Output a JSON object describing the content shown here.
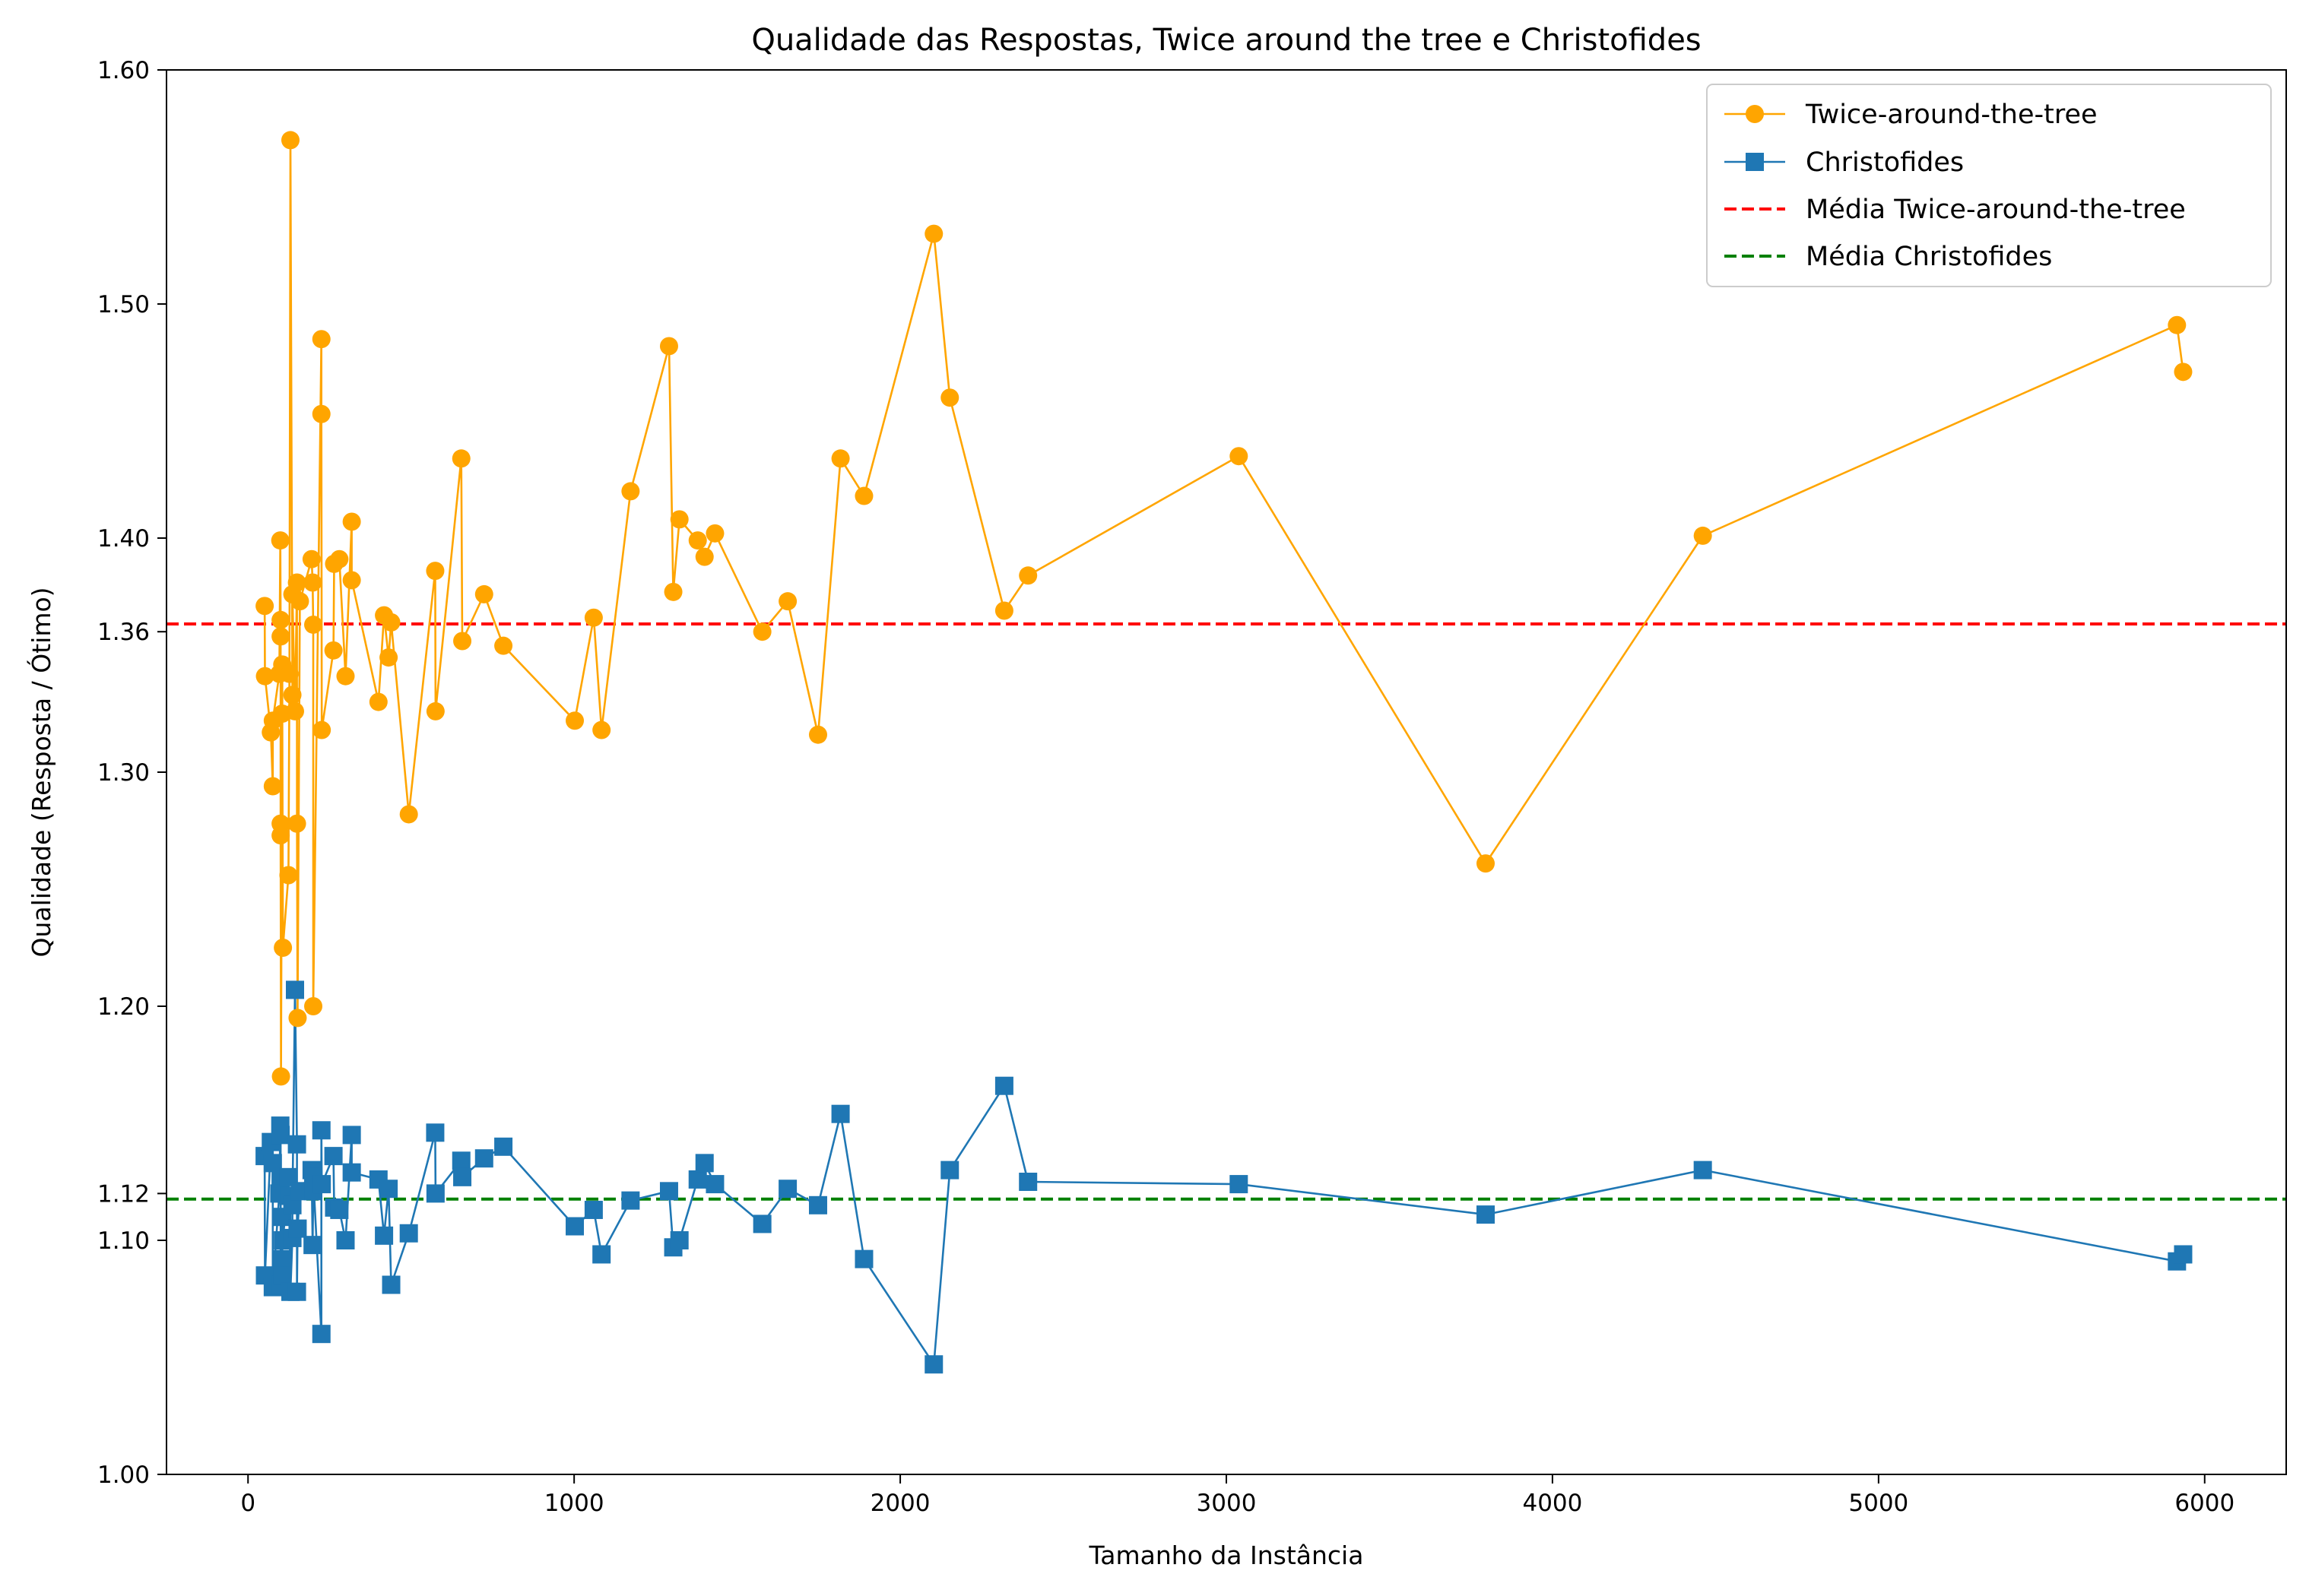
{
  "chart_data": {
    "type": "line",
    "title": "Qualidade das Respostas, Twice around the tree e Christofides",
    "xlabel": "Tamanho da Instância",
    "ylabel": "Qualidade (Resposta / Ótimo)",
    "xlim": [
      -250,
      6250
    ],
    "ylim": [
      1.0,
      1.6
    ],
    "xticks": [
      0,
      1000,
      2000,
      3000,
      4000,
      5000,
      6000
    ],
    "xtick_labels": [
      "0",
      "1000",
      "2000",
      "3000",
      "4000",
      "5000",
      "6000"
    ],
    "yticks": [
      1.0,
      1.1,
      1.12,
      1.2,
      1.3,
      1.36,
      1.4,
      1.5,
      1.6
    ],
    "ytick_labels": [
      "1.00",
      "1.10",
      "1.12",
      "1.20",
      "1.30",
      "1.36",
      "1.40",
      "1.50",
      "1.60"
    ],
    "grid": false,
    "legend_position": "top-right",
    "series": [
      {
        "name": "Twice-around-the-tree",
        "color": "#FFA500",
        "marker": "circle",
        "points": [
          [
            51,
            1.371
          ],
          [
            52,
            1.341
          ],
          [
            70,
            1.317
          ],
          [
            76,
            1.294
          ],
          [
            76,
            1.322
          ],
          [
            96,
            1.342
          ],
          [
            99,
            1.399
          ],
          [
            100,
            1.365
          ],
          [
            100,
            1.358
          ],
          [
            100,
            1.278
          ],
          [
            100,
            1.273
          ],
          [
            101,
            1.17
          ],
          [
            105,
            1.346
          ],
          [
            105,
            1.325
          ],
          [
            107,
            1.225
          ],
          [
            124,
            1.256
          ],
          [
            127,
            1.342
          ],
          [
            130,
            1.57
          ],
          [
            136,
            1.333
          ],
          [
            136,
            1.376
          ],
          [
            144,
            1.326
          ],
          [
            150,
            1.381
          ],
          [
            150,
            1.278
          ],
          [
            152,
            1.195
          ],
          [
            159,
            1.373
          ],
          [
            195,
            1.391
          ],
          [
            198,
            1.381
          ],
          [
            200,
            1.363
          ],
          [
            200,
            1.2
          ],
          [
            225,
            1.485
          ],
          [
            225,
            1.453
          ],
          [
            226,
            1.318
          ],
          [
            262,
            1.352
          ],
          [
            264,
            1.389
          ],
          [
            280,
            1.391
          ],
          [
            299,
            1.341
          ],
          [
            318,
            1.407
          ],
          [
            318,
            1.382
          ],
          [
            400,
            1.33
          ],
          [
            417,
            1.367
          ],
          [
            431,
            1.349
          ],
          [
            439,
            1.364
          ],
          [
            493,
            1.282
          ],
          [
            574,
            1.386
          ],
          [
            575,
            1.326
          ],
          [
            654,
            1.434
          ],
          [
            657,
            1.356
          ],
          [
            724,
            1.376
          ],
          [
            783,
            1.354
          ],
          [
            1002,
            1.322
          ],
          [
            1060,
            1.366
          ],
          [
            1084,
            1.318
          ],
          [
            1173,
            1.42
          ],
          [
            1291,
            1.482
          ],
          [
            1304,
            1.377
          ],
          [
            1323,
            1.408
          ],
          [
            1379,
            1.399
          ],
          [
            1400,
            1.392
          ],
          [
            1432,
            1.402
          ],
          [
            1577,
            1.36
          ],
          [
            1655,
            1.373
          ],
          [
            1748,
            1.316
          ],
          [
            1817,
            1.434
          ],
          [
            1889,
            1.418
          ],
          [
            2103,
            1.53
          ],
          [
            2152,
            1.46
          ],
          [
            2319,
            1.369
          ],
          [
            2392,
            1.384
          ],
          [
            3038,
            1.435
          ],
          [
            3795,
            1.261
          ],
          [
            4461,
            1.401
          ],
          [
            5915,
            1.491
          ],
          [
            5934,
            1.471
          ]
        ]
      },
      {
        "name": "Christofides",
        "color": "#1F77B4",
        "marker": "square",
        "points": [
          [
            51,
            1.136
          ],
          [
            52,
            1.085
          ],
          [
            70,
            1.142
          ],
          [
            76,
            1.133
          ],
          [
            76,
            1.08
          ],
          [
            96,
            1.12
          ],
          [
            99,
            1.149
          ],
          [
            100,
            1.145
          ],
          [
            100,
            1.081
          ],
          [
            100,
            1.126
          ],
          [
            100,
            1.12
          ],
          [
            101,
            1.092
          ],
          [
            105,
            1.085
          ],
          [
            105,
            1.11
          ],
          [
            107,
            1.1
          ],
          [
            124,
            1.127
          ],
          [
            127,
            1.119
          ],
          [
            130,
            1.078
          ],
          [
            136,
            1.101
          ],
          [
            136,
            1.115
          ],
          [
            144,
            1.207
          ],
          [
            150,
            1.141
          ],
          [
            150,
            1.078
          ],
          [
            152,
            1.105
          ],
          [
            159,
            1.121
          ],
          [
            195,
            1.13
          ],
          [
            198,
            1.098
          ],
          [
            200,
            1.121
          ],
          [
            200,
            1.127
          ],
          [
            225,
            1.06
          ],
          [
            225,
            1.147
          ],
          [
            226,
            1.124
          ],
          [
            262,
            1.136
          ],
          [
            264,
            1.114
          ],
          [
            280,
            1.113
          ],
          [
            299,
            1.1
          ],
          [
            318,
            1.145
          ],
          [
            318,
            1.129
          ],
          [
            400,
            1.126
          ],
          [
            417,
            1.102
          ],
          [
            431,
            1.122
          ],
          [
            439,
            1.081
          ],
          [
            493,
            1.103
          ],
          [
            574,
            1.146
          ],
          [
            575,
            1.12
          ],
          [
            654,
            1.134
          ],
          [
            657,
            1.127
          ],
          [
            724,
            1.135
          ],
          [
            783,
            1.14
          ],
          [
            1002,
            1.106
          ],
          [
            1060,
            1.113
          ],
          [
            1084,
            1.094
          ],
          [
            1173,
            1.117
          ],
          [
            1291,
            1.121
          ],
          [
            1304,
            1.097
          ],
          [
            1323,
            1.1
          ],
          [
            1379,
            1.126
          ],
          [
            1400,
            1.133
          ],
          [
            1432,
            1.124
          ],
          [
            1577,
            1.107
          ],
          [
            1655,
            1.122
          ],
          [
            1748,
            1.115
          ],
          [
            1817,
            1.154
          ],
          [
            1889,
            1.092
          ],
          [
            2103,
            1.047
          ],
          [
            2152,
            1.13
          ],
          [
            2319,
            1.166
          ],
          [
            2392,
            1.125
          ],
          [
            3038,
            1.124
          ],
          [
            3795,
            1.111
          ],
          [
            4461,
            1.13
          ],
          [
            5915,
            1.091
          ],
          [
            5934,
            1.094
          ]
        ]
      }
    ],
    "reference_lines": [
      {
        "name": "Média Twice-around-the-tree",
        "y": 1.3633,
        "color": "#FF0000",
        "style": "dashed"
      },
      {
        "name": "Média Christofides",
        "y": 1.1176,
        "color": "#008000",
        "style": "dashed"
      }
    ]
  }
}
